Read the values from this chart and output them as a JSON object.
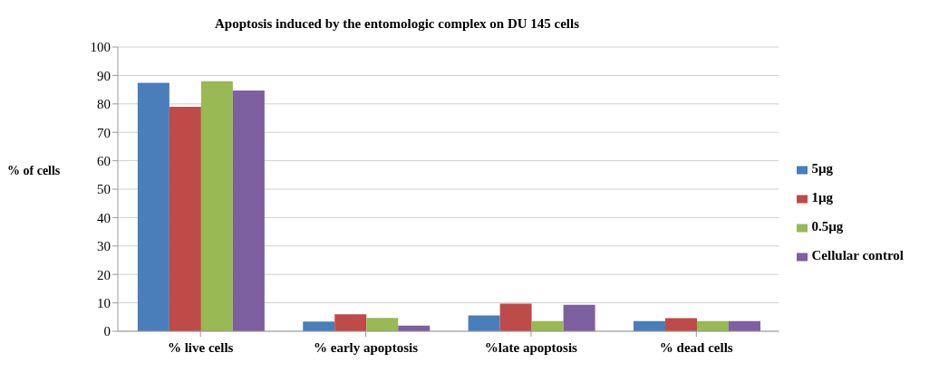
{
  "chart_data": {
    "type": "bar",
    "title": "Apoptosis induced by the entomologic complex on DU 145 cells",
    "ylabel": "% of cells",
    "categories": [
      "% live cells",
      "% early apoptosis",
      "%late apoptosis",
      "% dead cells"
    ],
    "series": [
      {
        "name": "5µg",
        "color": "#4a7ebb",
        "values": [
          87.4,
          3.4,
          5.6,
          3.6
        ]
      },
      {
        "name": "1µg",
        "color": "#be4b48",
        "values": [
          79,
          6,
          9.7,
          4.6
        ]
      },
      {
        "name": "0.5µg",
        "color": "#98b954",
        "values": [
          88,
          4.7,
          3.6,
          3.6
        ]
      },
      {
        "name": "Cellular control",
        "color": "#7d60a0",
        "values": [
          84.7,
          2,
          9.3,
          3.6
        ]
      }
    ],
    "ylim": [
      0,
      100
    ],
    "yticks": [
      0,
      10,
      20,
      30,
      40,
      50,
      60,
      70,
      80,
      90,
      100
    ],
    "grid": "y",
    "legend": "right"
  }
}
